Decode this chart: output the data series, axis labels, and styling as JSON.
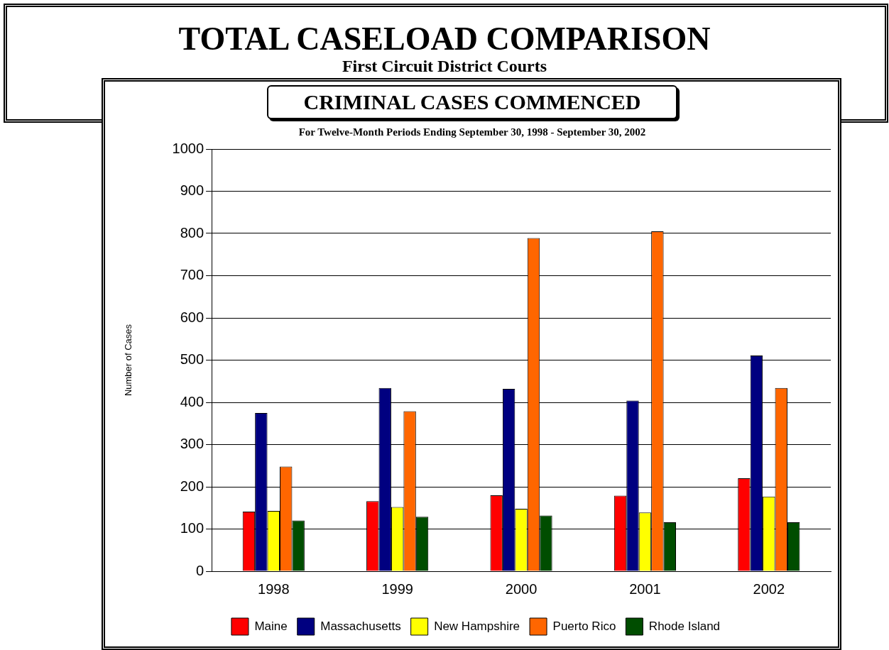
{
  "chart_data": {
    "type": "bar",
    "title": "TOTAL CASELOAD COMPARISON",
    "subtitle": "First Circuit District Courts",
    "annotations": [
      "CRIMINAL CASES COMMENCED",
      "For Twelve-Month Periods Ending September 30, 1998 - September 30, 2002"
    ],
    "ylabel": "Number of Cases",
    "categories": [
      "1998",
      "1999",
      "2000",
      "2001",
      "2002"
    ],
    "series": [
      {
        "name": "Maine",
        "color": "#ff0000",
        "values": [
          141,
          166,
          180,
          179,
          220
        ]
      },
      {
        "name": "Massachusetts",
        "color": "#000080",
        "values": [
          375,
          434,
          432,
          404,
          511
        ]
      },
      {
        "name": "New Hampshire",
        "color": "#ffff00",
        "values": [
          143,
          152,
          148,
          139,
          177
        ]
      },
      {
        "name": "Puerto Rico",
        "color": "#ff6600",
        "values": [
          248,
          379,
          789,
          805,
          434
        ]
      },
      {
        "name": "Rhode Island",
        "color": "#004d00",
        "values": [
          120,
          129,
          132,
          116,
          116
        ]
      }
    ],
    "ylim": [
      0,
      1000
    ],
    "yticks": [
      0,
      100,
      200,
      300,
      400,
      500,
      600,
      700,
      800,
      900,
      1000
    ],
    "grid": "y",
    "legend": "bottom"
  }
}
